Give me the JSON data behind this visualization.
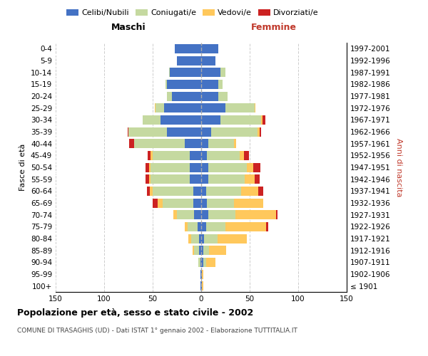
{
  "age_groups": [
    "100+",
    "95-99",
    "90-94",
    "85-89",
    "80-84",
    "75-79",
    "70-74",
    "65-69",
    "60-64",
    "55-59",
    "50-54",
    "45-49",
    "40-44",
    "35-39",
    "30-34",
    "25-29",
    "20-24",
    "15-19",
    "10-14",
    "5-9",
    "0-4"
  ],
  "birth_years": [
    "≤ 1901",
    "1902-1906",
    "1907-1911",
    "1912-1916",
    "1917-1921",
    "1922-1926",
    "1927-1931",
    "1932-1936",
    "1937-1941",
    "1942-1946",
    "1947-1951",
    "1952-1956",
    "1957-1961",
    "1962-1966",
    "1967-1971",
    "1972-1976",
    "1977-1981",
    "1982-1986",
    "1987-1991",
    "1992-1996",
    "1997-2001"
  ],
  "maschi_celibe": [
    1,
    1,
    1,
    2,
    2,
    4,
    7,
    8,
    8,
    12,
    12,
    12,
    17,
    35,
    42,
    38,
    30,
    35,
    32,
    25,
    27
  ],
  "maschi_coniugato": [
    0,
    0,
    2,
    5,
    8,
    10,
    18,
    32,
    42,
    40,
    40,
    38,
    52,
    40,
    18,
    9,
    5,
    2,
    1,
    0,
    0
  ],
  "maschi_vedovo": [
    0,
    0,
    0,
    2,
    3,
    3,
    4,
    5,
    3,
    2,
    2,
    2,
    0,
    0,
    0,
    1,
    0,
    0,
    0,
    0,
    0
  ],
  "maschi_divorziato": [
    0,
    0,
    0,
    0,
    0,
    0,
    0,
    5,
    3,
    3,
    3,
    3,
    5,
    1,
    0,
    0,
    0,
    0,
    0,
    0,
    0
  ],
  "femmine_celibe": [
    1,
    1,
    2,
    2,
    3,
    5,
    7,
    6,
    5,
    7,
    7,
    6,
    7,
    10,
    20,
    25,
    18,
    18,
    20,
    15,
    18
  ],
  "femmine_coniugato": [
    0,
    0,
    3,
    6,
    14,
    20,
    28,
    28,
    36,
    38,
    40,
    34,
    27,
    48,
    42,
    30,
    9,
    4,
    5,
    0,
    0
  ],
  "femmine_vedovo": [
    1,
    1,
    10,
    18,
    30,
    42,
    42,
    30,
    18,
    10,
    7,
    4,
    2,
    2,
    1,
    1,
    0,
    0,
    0,
    0,
    0
  ],
  "femmine_divorziato": [
    0,
    0,
    0,
    0,
    0,
    2,
    2,
    0,
    5,
    5,
    7,
    5,
    0,
    2,
    3,
    0,
    0,
    0,
    0,
    0,
    0
  ],
  "color_celibe": "#4472C4",
  "color_coniugato": "#C5D9A0",
  "color_vedovo": "#FFC85C",
  "color_divorziato": "#CC2222",
  "title": "Popolazione per età, sesso e stato civile - 2002",
  "subtitle": "COMUNE DI TRASAGHIS (UD) - Dati ISTAT 1° gennaio 2002 - Elaborazione TUTTITALIA.IT",
  "ylabel_left": "Fasce di età",
  "ylabel_right": "Anni di nascita",
  "xlabel_maschi": "Maschi",
  "xlabel_femmine": "Femmine",
  "xlim": 150,
  "bg_color": "#FFFFFF",
  "grid_color": "#CCCCCC",
  "bar_height": 0.78,
  "legend_labels": [
    "Celibi/Nubili",
    "Coniugati/e",
    "Vedovi/e",
    "Divorziati/e"
  ]
}
